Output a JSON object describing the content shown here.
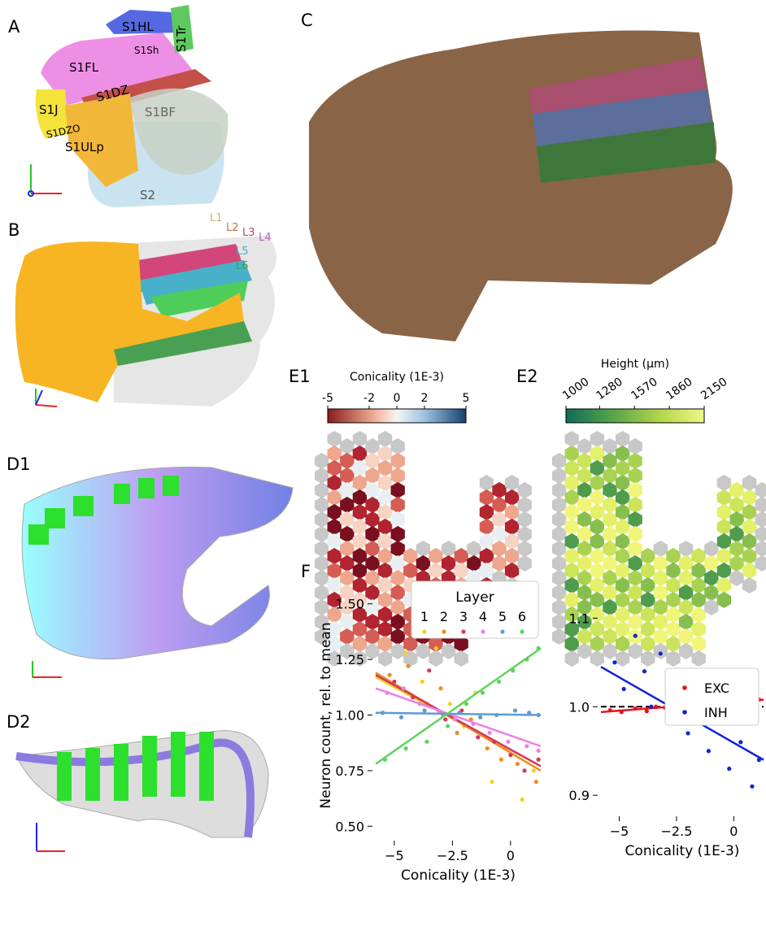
{
  "panels": {
    "labels": [
      "A",
      "B",
      "C",
      "D1",
      "D2",
      "E1",
      "E2",
      "F"
    ],
    "regions": [
      "S1HL",
      "S1Tr",
      "S1Sh",
      "S1FL",
      "S1DZ",
      "S1J",
      "S1DZO",
      "S1ULp",
      "S1BF",
      "S2"
    ],
    "layers": [
      "L1",
      "L2",
      "L3",
      "L4",
      "L5",
      "L6"
    ],
    "colorbar_conicality": {
      "title": "Conicality (1E-3)",
      "ticks": [
        -5,
        -2,
        0,
        2,
        5
      ],
      "range": [
        -5,
        5
      ]
    },
    "colorbar_height": {
      "title": "Height (µm)",
      "ticks": [
        1000,
        1280,
        1570,
        1860,
        2150
      ],
      "range": [
        1000,
        2150
      ]
    }
  },
  "chart_data": [
    {
      "type": "scatter",
      "ylabel": "Neuron count, rel. to mean",
      "xlabel": "Conicality (1E-3)",
      "legend_title": "Layer",
      "legend": "upper center",
      "xlim": [
        -5.8,
        1.3
      ],
      "ylim": [
        0.45,
        1.55
      ],
      "xticks": [
        {
          "value": -5,
          "label": "−5"
        },
        {
          "value": -2.5,
          "label": "−2.5"
        },
        {
          "value": 0,
          "label": "0"
        }
      ],
      "yticks": [
        {
          "value": 0.5,
          "label": "0.50"
        },
        {
          "value": 0.75,
          "label": "0.75"
        },
        {
          "value": 1.0,
          "label": "1.00"
        },
        {
          "value": 1.25,
          "label": "1.25"
        },
        {
          "value": 1.5,
          "label": "1.50"
        }
      ],
      "series": [
        {
          "name": "1",
          "color": "#f2d21b",
          "x": [
            -4.5,
            -3.8,
            -3.2,
            -2.6,
            -2.0,
            -1.5,
            -0.8,
            -0.2,
            0.5,
            1.0
          ],
          "values": [
            1.28,
            1.15,
            1.3,
            1.05,
            0.95,
            1.1,
            0.7,
            0.85,
            0.62,
            0.75
          ],
          "trend": [
            1.17,
            0.77
          ]
        },
        {
          "name": "2",
          "color": "#f08a24",
          "x": [
            -5.2,
            -4.4,
            -3.6,
            -3.0,
            -2.3,
            -1.7,
            -1.0,
            -0.4,
            0.3,
            1.1
          ],
          "values": [
            1.18,
            1.22,
            1.05,
            1.12,
            0.92,
            0.98,
            0.85,
            0.8,
            0.78,
            0.7
          ],
          "trend": [
            1.19,
            0.75
          ]
        },
        {
          "name": "3",
          "color": "#cf3a5e",
          "x": [
            -5.0,
            -4.2,
            -3.5,
            -2.8,
            -2.1,
            -1.4,
            -0.7,
            0.0,
            0.6,
            1.2
          ],
          "values": [
            1.15,
            1.08,
            1.2,
            0.98,
            1.02,
            0.9,
            0.88,
            0.82,
            0.75,
            0.8
          ],
          "trend": [
            1.18,
            0.77
          ]
        },
        {
          "name": "4",
          "color": "#ec7fe6",
          "x": [
            -5.3,
            -4.6,
            -3.9,
            -3.1,
            -2.4,
            -1.6,
            -0.9,
            -0.1,
            0.7,
            1.2
          ],
          "values": [
            1.1,
            1.12,
            1.05,
            1.02,
            0.98,
            0.96,
            0.92,
            0.88,
            0.86,
            0.84
          ],
          "trend": [
            1.12,
            0.86
          ]
        },
        {
          "name": "5",
          "color": "#5f9bd1",
          "x": [
            -5.5,
            -4.7,
            -3.7,
            -2.9,
            -2.2,
            -1.3,
            -0.6,
            0.2,
            0.8,
            1.2
          ],
          "values": [
            1.01,
            0.99,
            1.02,
            1.0,
            1.01,
            0.99,
            1.0,
            1.02,
            1.01,
            1.0
          ],
          "trend": [
            1.01,
            1.0
          ]
        },
        {
          "name": "6",
          "color": "#5fd45c",
          "x": [
            -5.4,
            -4.5,
            -3.6,
            -2.7,
            -1.9,
            -1.2,
            -0.5,
            0.1,
            0.7,
            1.2
          ],
          "values": [
            0.8,
            0.85,
            0.88,
            0.95,
            1.05,
            1.1,
            1.15,
            1.2,
            1.25,
            1.3
          ],
          "trend": [
            0.78,
            1.3
          ]
        }
      ]
    },
    {
      "type": "scatter",
      "xlabel": "Conicality (1E-3)",
      "legend": "upper right",
      "reference_line": 1.0,
      "xlim": [
        -5.8,
        1.3
      ],
      "ylim": [
        0.88,
        1.16
      ],
      "xticks": [
        {
          "value": -5,
          "label": "−5"
        },
        {
          "value": -2.5,
          "label": "−2.5"
        },
        {
          "value": 0,
          "label": "0"
        }
      ],
      "yticks": [
        {
          "value": 0.9,
          "label": "0.9"
        },
        {
          "value": 1.0,
          "label": "1.0"
        },
        {
          "value": 1.1,
          "label": "1.1"
        }
      ],
      "series": [
        {
          "name": "EXC",
          "color": "#e8121c",
          "x": [
            -5.4,
            -4.9,
            -4.3,
            -3.8,
            -3.4,
            -3.0,
            -2.6,
            -2.1,
            -1.7,
            -1.2,
            -0.8,
            -0.3,
            0.2,
            0.7,
            1.1
          ],
          "values": [
            0.996,
            0.994,
            0.998,
            0.995,
            1.0,
            0.999,
            0.998,
            1.002,
            1.0,
            1.003,
            1.004,
            1.002,
            1.006,
            1.007,
            1.008
          ],
          "trend": [
            0.994,
            1.008
          ]
        },
        {
          "name": "INH",
          "color": "#1024d6",
          "x": [
            -5.2,
            -4.8,
            -4.3,
            -3.9,
            -3.6,
            -3.2,
            -2.8,
            -2.4,
            -2.0,
            -1.5,
            -1.1,
            -0.7,
            -0.2,
            0.3,
            0.8,
            1.1
          ],
          "values": [
            1.05,
            1.02,
            1.08,
            1.04,
            1.0,
            1.06,
            0.99,
            1.02,
            0.97,
            1.01,
            0.95,
            0.99,
            0.93,
            0.96,
            0.91,
            0.94
          ],
          "trend": [
            1.045,
            0.94
          ]
        }
      ]
    }
  ]
}
